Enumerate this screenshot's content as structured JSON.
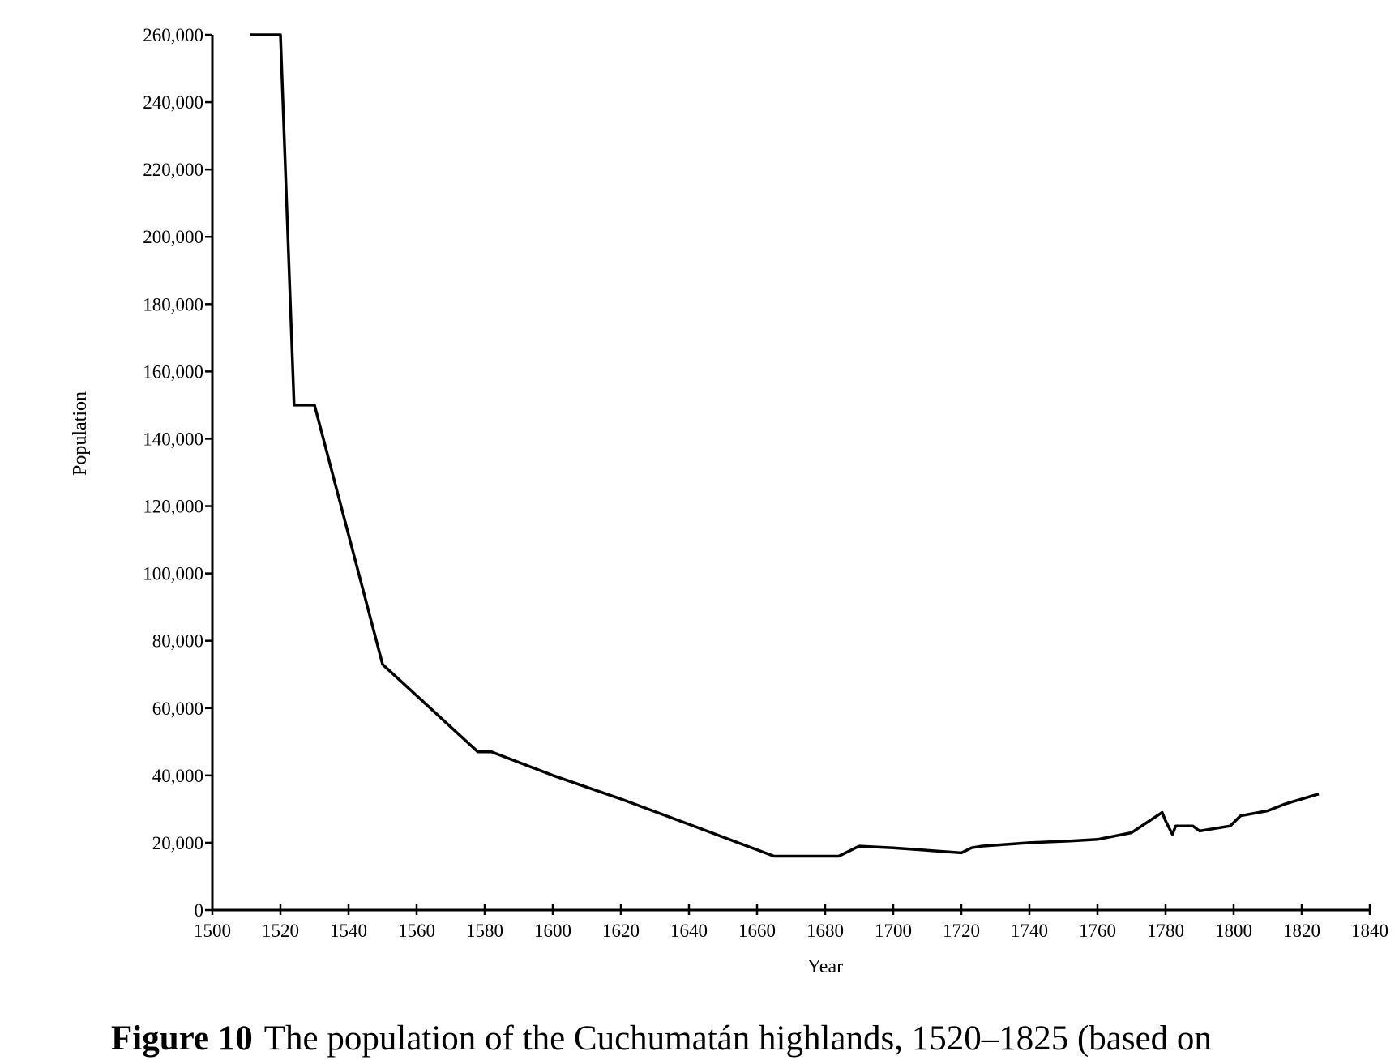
{
  "caption": {
    "number": "Figure 10",
    "text": "The population of the Cuchumatán highlands, 1520–1825 (based on"
  },
  "chart_data": {
    "type": "line",
    "title": "",
    "xlabel": "Year",
    "ylabel": "Population",
    "xlim": [
      1500,
      1840
    ],
    "ylim": [
      0,
      260000
    ],
    "xticks": [
      1500,
      1520,
      1540,
      1560,
      1580,
      1600,
      1620,
      1640,
      1660,
      1680,
      1700,
      1720,
      1740,
      1760,
      1780,
      1800,
      1820,
      1840
    ],
    "xtick_labels": [
      "1500",
      "1520",
      "1540",
      "1560",
      "1580",
      "1600",
      "1620",
      "1640",
      "1660",
      "1680",
      "1700",
      "1720",
      "1740",
      "1760",
      "1780",
      "1800",
      "1820",
      "1840"
    ],
    "yticks": [
      0,
      20000,
      40000,
      60000,
      80000,
      100000,
      120000,
      140000,
      160000,
      180000,
      200000,
      220000,
      240000,
      260000
    ],
    "ytick_labels": [
      "0",
      "20,000",
      "40,000",
      "60,000",
      "80,000",
      "100,000",
      "120,000",
      "140,000",
      "160,000",
      "180,000",
      "200,000",
      "220,000",
      "240,000",
      "260,000"
    ],
    "grid": false,
    "legend": "none",
    "line_color": "#000000",
    "series": [
      {
        "x": [
          1511,
          1520,
          1524,
          1525,
          1530,
          1550,
          1578,
          1582,
          1600,
          1620,
          1640,
          1665,
          1668,
          1684,
          1690,
          1700,
          1720,
          1723,
          1726,
          1740,
          1752,
          1760,
          1770,
          1779,
          1780,
          1782,
          1783,
          1786,
          1788,
          1790,
          1799,
          1802,
          1810,
          1815,
          1820,
          1825
        ],
        "y": [
          260000,
          260000,
          150000,
          150000,
          150000,
          73000,
          47000,
          47000,
          40000,
          33000,
          25500,
          16000,
          16000,
          16000,
          19000,
          18500,
          17000,
          18500,
          19000,
          20000,
          20500,
          21000,
          23000,
          29000,
          26500,
          22500,
          25000,
          25000,
          25000,
          23500,
          25000,
          28000,
          29500,
          31500,
          33000,
          34500
        ]
      }
    ]
  }
}
